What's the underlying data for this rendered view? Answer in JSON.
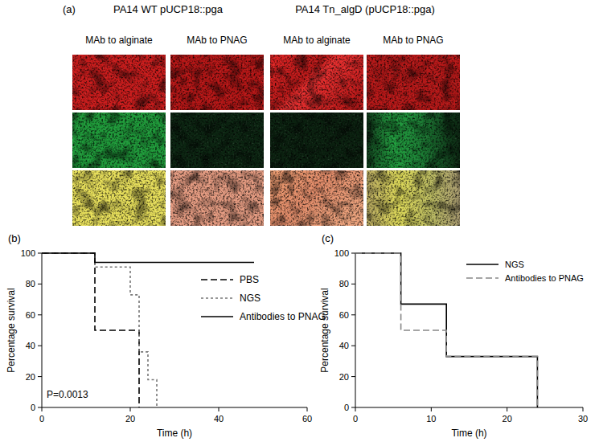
{
  "panel_a": {
    "label": "(a)",
    "groups": [
      {
        "title": "PA14 WT pUCP18::pga",
        "columns": [
          "MAb to alginate",
          "MAb to PNAG"
        ]
      },
      {
        "title": "PA14 Tn_algD (pUCP18::pga)",
        "columns": [
          "MAb to alginate",
          "MAb to PNAG"
        ]
      }
    ]
  },
  "chart_data": [
    {
      "type": "step",
      "title": "(b)",
      "x_label": "Time (h)",
      "y_label": "Percentage survival",
      "xlim": [
        0,
        60
      ],
      "xticks": [
        0,
        20,
        40,
        60
      ],
      "ylim": [
        0,
        100
      ],
      "yticks": [
        0,
        20,
        40,
        60,
        80,
        100
      ],
      "legend": "upper right",
      "annotations": [
        "P=0.0013"
      ],
      "series": [
        {
          "name": "PBS",
          "color": "#000000",
          "line_style": "dashed",
          "x": [
            0,
            12,
            22
          ],
          "values": [
            100,
            50,
            0
          ]
        },
        {
          "name": "NGS",
          "color": "#777777",
          "line_style": "dotted",
          "x": [
            0,
            12,
            20,
            22,
            24,
            26
          ],
          "values": [
            100,
            91,
            73,
            36,
            18,
            0
          ]
        },
        {
          "name": "Antibodies to PNAG",
          "color": "#000000",
          "line_style": "solid",
          "x": [
            0,
            12,
            48
          ],
          "values": [
            100,
            94,
            94
          ]
        }
      ]
    },
    {
      "type": "step",
      "title": "(c)",
      "x_label": "Time (h)",
      "y_label": "Percentage survival",
      "xlim": [
        0,
        30
      ],
      "xticks": [
        0,
        10,
        20,
        30
      ],
      "ylim": [
        0,
        100
      ],
      "yticks": [
        0,
        20,
        40,
        60,
        80,
        100
      ],
      "legend": "upper right",
      "series": [
        {
          "name": "NGS",
          "color": "#000000",
          "line_style": "solid",
          "x": [
            0,
            6,
            12,
            24
          ],
          "values": [
            100,
            67,
            33,
            0
          ]
        },
        {
          "name": "Antibodies to PNAG",
          "color": "#888888",
          "line_style": "dashed",
          "x": [
            0,
            6,
            12,
            24
          ],
          "values": [
            100,
            50,
            33,
            0
          ]
        }
      ]
    }
  ]
}
